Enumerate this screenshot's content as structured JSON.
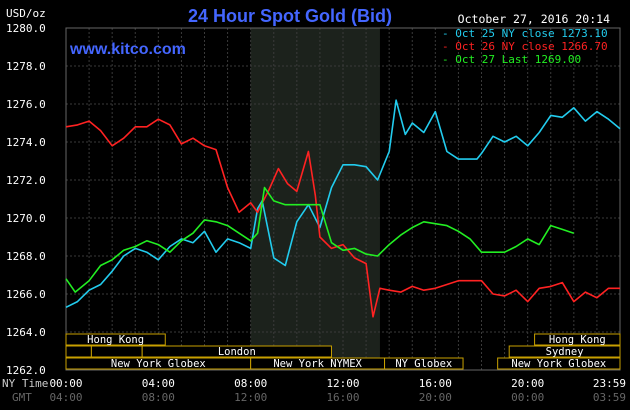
{
  "chart_data": {
    "type": "line",
    "title": "24 Hour Spot Gold (Bid)",
    "source": "www.kitco.com",
    "timestamp": "October 27, 2016 20:14",
    "yunit": "USD/oz",
    "ylim": [
      1262.0,
      1280.0
    ],
    "yticks": [
      "1280.0",
      "1278.0",
      "1276.0",
      "1274.0",
      "1272.0",
      "1270.0",
      "1268.0",
      "1266.0",
      "1264.0",
      "1262.0"
    ],
    "xlim": [
      0,
      24
    ],
    "grid": true,
    "legend_position": "top-right",
    "x_axis_labels": {
      "ny_label": "NY Time",
      "gmt_label": "GMT",
      "ny_ticks": [
        "00:00",
        "04:00",
        "08:00",
        "12:00",
        "16:00",
        "20:00",
        "23:59"
      ],
      "gmt_ticks": [
        "04:00",
        "08:00",
        "12:00",
        "16:00",
        "20:00",
        "00:00",
        "03:59"
      ]
    },
    "sessions": {
      "row1": [
        "Hong Kong",
        "Hong Kong"
      ],
      "row2": [
        "London",
        "Sydney"
      ],
      "row3": [
        "New York Globex",
        "New York NYMEX",
        "NY Globex",
        "New York Globex"
      ]
    },
    "series": [
      {
        "name": "Oct 25 NY close 1273.10",
        "color": "#22ccee",
        "points": [
          [
            0,
            1265.3
          ],
          [
            0.5,
            1265.6
          ],
          [
            1,
            1266.2
          ],
          [
            1.5,
            1266.5
          ],
          [
            2,
            1267.2
          ],
          [
            2.5,
            1268.0
          ],
          [
            3,
            1268.4
          ],
          [
            3.5,
            1268.2
          ],
          [
            4,
            1267.8
          ],
          [
            4.5,
            1268.5
          ],
          [
            5,
            1268.9
          ],
          [
            5.5,
            1268.7
          ],
          [
            6,
            1269.3
          ],
          [
            6.5,
            1268.2
          ],
          [
            7,
            1268.9
          ],
          [
            7.5,
            1268.7
          ],
          [
            8,
            1268.4
          ],
          [
            8.3,
            1270.5
          ],
          [
            8.5,
            1270.9
          ],
          [
            9,
            1267.9
          ],
          [
            9.5,
            1267.5
          ],
          [
            10,
            1269.8
          ],
          [
            10.5,
            1270.7
          ],
          [
            11,
            1269.5
          ],
          [
            11.5,
            1271.6
          ],
          [
            12,
            1272.8
          ],
          [
            12.5,
            1272.8
          ],
          [
            13,
            1272.7
          ],
          [
            13.5,
            1272.0
          ],
          [
            14,
            1273.5
          ],
          [
            14.3,
            1276.2
          ],
          [
            14.7,
            1274.4
          ],
          [
            15,
            1275.0
          ],
          [
            15.5,
            1274.5
          ],
          [
            16,
            1275.6
          ],
          [
            16.5,
            1273.5
          ],
          [
            17,
            1273.1
          ],
          [
            17.8,
            1273.1
          ],
          [
            18,
            1273.4
          ],
          [
            18.5,
            1274.3
          ],
          [
            19,
            1274.0
          ],
          [
            19.5,
            1274.3
          ],
          [
            20,
            1273.8
          ],
          [
            20.5,
            1274.5
          ],
          [
            21,
            1275.4
          ],
          [
            21.5,
            1275.3
          ],
          [
            22,
            1275.8
          ],
          [
            22.5,
            1275.1
          ],
          [
            23,
            1275.6
          ],
          [
            23.5,
            1275.2
          ],
          [
            24,
            1274.7
          ]
        ]
      },
      {
        "name": "Oct 26 NY close 1266.70",
        "color": "#ff2222",
        "points": [
          [
            0,
            1274.8
          ],
          [
            0.5,
            1274.9
          ],
          [
            1,
            1275.1
          ],
          [
            1.5,
            1274.6
          ],
          [
            2,
            1273.8
          ],
          [
            2.5,
            1274.2
          ],
          [
            3,
            1274.8
          ],
          [
            3.5,
            1274.8
          ],
          [
            4,
            1275.2
          ],
          [
            4.5,
            1274.9
          ],
          [
            5,
            1273.9
          ],
          [
            5.5,
            1274.2
          ],
          [
            6,
            1273.8
          ],
          [
            6.5,
            1273.6
          ],
          [
            7,
            1271.6
          ],
          [
            7.5,
            1270.3
          ],
          [
            8,
            1270.8
          ],
          [
            8.3,
            1270.3
          ],
          [
            8.8,
            1271.5
          ],
          [
            9.2,
            1272.6
          ],
          [
            9.6,
            1271.8
          ],
          [
            10,
            1271.4
          ],
          [
            10.5,
            1273.5
          ],
          [
            10.8,
            1271.2
          ],
          [
            11,
            1269.0
          ],
          [
            11.5,
            1268.4
          ],
          [
            12,
            1268.6
          ],
          [
            12.5,
            1267.9
          ],
          [
            13,
            1267.6
          ],
          [
            13.3,
            1264.8
          ],
          [
            13.6,
            1266.3
          ],
          [
            14,
            1266.2
          ],
          [
            14.5,
            1266.1
          ],
          [
            15,
            1266.4
          ],
          [
            15.5,
            1266.2
          ],
          [
            16,
            1266.3
          ],
          [
            16.5,
            1266.5
          ],
          [
            17,
            1266.7
          ],
          [
            18,
            1266.7
          ],
          [
            18.5,
            1266.0
          ],
          [
            19,
            1265.9
          ],
          [
            19.5,
            1266.2
          ],
          [
            20,
            1265.6
          ],
          [
            20.5,
            1266.3
          ],
          [
            21,
            1266.4
          ],
          [
            21.5,
            1266.6
          ],
          [
            22,
            1265.6
          ],
          [
            22.5,
            1266.1
          ],
          [
            23,
            1265.8
          ],
          [
            23.5,
            1266.3
          ],
          [
            24,
            1266.3
          ]
        ]
      },
      {
        "name": "Oct 27 Last 1269.00",
        "color": "#22ee22",
        "points": [
          [
            0,
            1266.8
          ],
          [
            0.4,
            1266.1
          ],
          [
            1,
            1266.7
          ],
          [
            1.5,
            1267.5
          ],
          [
            2,
            1267.8
          ],
          [
            2.5,
            1268.3
          ],
          [
            3,
            1268.5
          ],
          [
            3.5,
            1268.8
          ],
          [
            4,
            1268.6
          ],
          [
            4.5,
            1268.2
          ],
          [
            5,
            1268.8
          ],
          [
            5.5,
            1269.2
          ],
          [
            6,
            1269.9
          ],
          [
            6.5,
            1269.8
          ],
          [
            7,
            1269.6
          ],
          [
            7.5,
            1269.2
          ],
          [
            8,
            1268.8
          ],
          [
            8.3,
            1269.2
          ],
          [
            8.6,
            1271.6
          ],
          [
            9,
            1270.9
          ],
          [
            9.5,
            1270.7
          ],
          [
            10,
            1270.7
          ],
          [
            11,
            1270.7
          ],
          [
            11.5,
            1268.7
          ],
          [
            12,
            1268.3
          ],
          [
            12.5,
            1268.4
          ],
          [
            13,
            1268.1
          ],
          [
            13.5,
            1268.0
          ],
          [
            14,
            1268.6
          ],
          [
            14.5,
            1269.1
          ],
          [
            15,
            1269.5
          ],
          [
            15.5,
            1269.8
          ],
          [
            16,
            1269.7
          ],
          [
            16.5,
            1269.6
          ],
          [
            17,
            1269.3
          ],
          [
            17.5,
            1268.9
          ],
          [
            18,
            1268.2
          ],
          [
            19,
            1268.2
          ],
          [
            19.5,
            1268.5
          ],
          [
            20,
            1268.9
          ],
          [
            20.5,
            1268.6
          ],
          [
            21,
            1269.6
          ],
          [
            21.5,
            1269.4
          ],
          [
            22,
            1269.2
          ]
        ]
      }
    ]
  }
}
